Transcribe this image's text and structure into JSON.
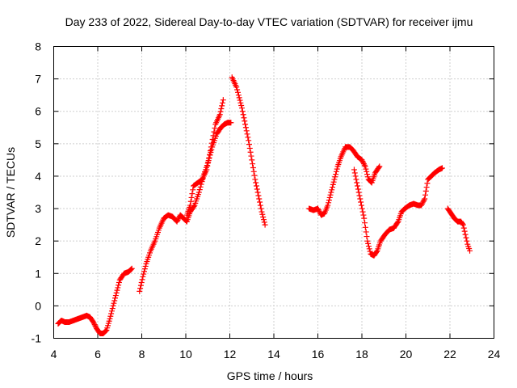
{
  "chart_data": {
    "type": "scatter",
    "title": "Day 233 of 2022, Sidereal Day-to-day VTEC variation (SDTVAR) for receiver ijmu",
    "xlabel": "GPS time / hours",
    "ylabel": "SDTVAR / TECUs",
    "xlim": [
      4,
      24
    ],
    "ylim": [
      -1,
      8
    ],
    "xticks": [
      4,
      6,
      8,
      10,
      12,
      14,
      16,
      18,
      20,
      22,
      24
    ],
    "yticks": [
      -1,
      0,
      1,
      2,
      3,
      4,
      5,
      6,
      7,
      8
    ],
    "grid": true,
    "marker": "+",
    "color": "#ff0000",
    "series": [
      {
        "name": "segment-1",
        "x": [
          4.2,
          4.35,
          4.5,
          4.7,
          4.9,
          5.1,
          5.3,
          5.5,
          5.65,
          5.8,
          5.95,
          6.1,
          6.25,
          6.4,
          6.55,
          6.7,
          6.85,
          7.0,
          7.2,
          7.4,
          7.55
        ],
        "y": [
          -0.55,
          -0.45,
          -0.5,
          -0.5,
          -0.45,
          -0.4,
          -0.35,
          -0.3,
          -0.35,
          -0.5,
          -0.7,
          -0.85,
          -0.85,
          -0.75,
          -0.4,
          0.0,
          0.4,
          0.8,
          1.0,
          1.05,
          1.15
        ]
      },
      {
        "name": "segment-2",
        "x": [
          7.9,
          8.05,
          8.2,
          8.4,
          8.6,
          8.8,
          9.0,
          9.2,
          9.4,
          9.6,
          9.75,
          9.9,
          10.05,
          10.2,
          10.4,
          10.6,
          10.8,
          11.0,
          11.2,
          11.4,
          11.6,
          11.75,
          11.9,
          12.05
        ],
        "y": [
          0.45,
          0.9,
          1.3,
          1.7,
          2.0,
          2.4,
          2.7,
          2.8,
          2.75,
          2.6,
          2.8,
          2.7,
          2.6,
          2.9,
          3.1,
          3.5,
          4.0,
          4.4,
          4.9,
          5.3,
          5.5,
          5.6,
          5.65,
          5.65
        ]
      },
      {
        "name": "segment-3",
        "x": [
          10.05,
          10.2,
          10.35,
          10.55,
          10.75,
          10.95,
          11.15,
          11.35,
          11.55,
          11.7
        ],
        "y": [
          2.8,
          3.1,
          3.7,
          3.8,
          3.9,
          4.2,
          4.9,
          5.6,
          5.9,
          6.35
        ]
      },
      {
        "name": "segment-4",
        "x": [
          12.1,
          12.2,
          12.3,
          12.4,
          12.55,
          12.7,
          12.85,
          13.0,
          13.15,
          13.3,
          13.45,
          13.6
        ],
        "y": [
          7.05,
          6.9,
          6.75,
          6.5,
          6.1,
          5.6,
          5.1,
          4.5,
          3.9,
          3.4,
          2.9,
          2.5
        ]
      },
      {
        "name": "segment-5",
        "x": [
          15.6,
          15.8,
          16.0,
          16.15,
          16.3,
          16.45,
          16.6,
          16.75,
          16.9,
          17.05,
          17.25,
          17.45,
          17.6,
          17.8,
          18.0,
          18.15,
          18.3,
          18.45,
          18.6,
          18.8
        ],
        "y": [
          3.0,
          2.95,
          3.0,
          2.8,
          2.85,
          3.1,
          3.5,
          3.9,
          4.3,
          4.6,
          4.9,
          4.9,
          4.8,
          4.6,
          4.5,
          4.3,
          3.9,
          3.8,
          4.1,
          4.3
        ]
      },
      {
        "name": "segment-6",
        "x": [
          17.65,
          17.8,
          17.95,
          18.1,
          18.25,
          18.4,
          18.55,
          18.7,
          18.85,
          19.05,
          19.25,
          19.45,
          19.65,
          19.8,
          19.95,
          20.15,
          20.35,
          20.55,
          20.7,
          20.85,
          21.0,
          21.15,
          21.3,
          21.5,
          21.65
        ],
        "y": [
          4.2,
          3.7,
          3.2,
          2.7,
          2.0,
          1.6,
          1.55,
          1.7,
          2.0,
          2.2,
          2.35,
          2.4,
          2.6,
          2.9,
          3.0,
          3.1,
          3.15,
          3.1,
          3.1,
          3.3,
          3.9,
          4.0,
          4.1,
          4.2,
          4.25
        ]
      },
      {
        "name": "segment-7",
        "x": [
          21.9,
          22.05,
          22.2,
          22.35,
          22.5,
          22.6,
          22.7,
          22.8,
          22.9
        ],
        "y": [
          3.0,
          2.85,
          2.7,
          2.6,
          2.6,
          2.5,
          2.2,
          1.9,
          1.7
        ]
      }
    ]
  }
}
